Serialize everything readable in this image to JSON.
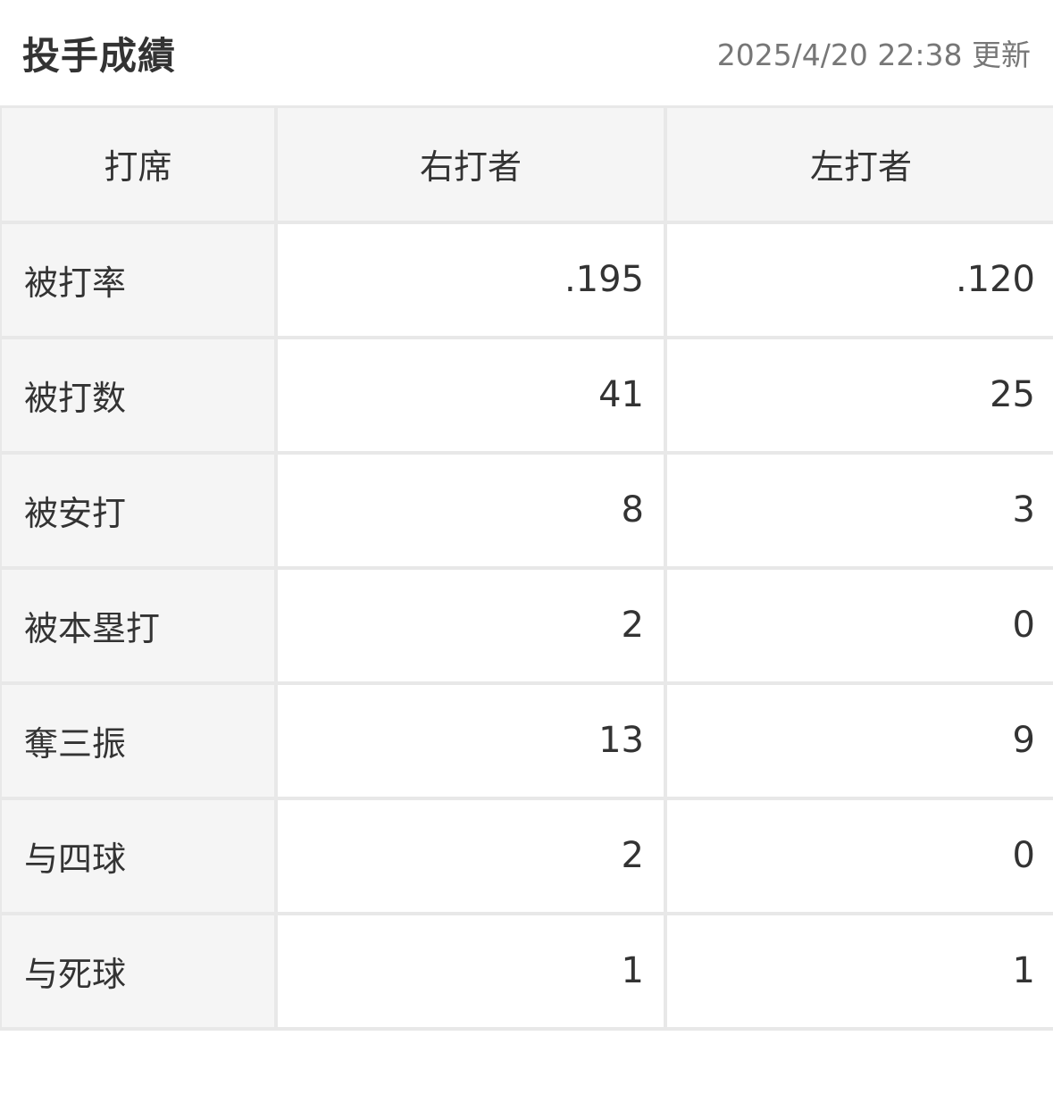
{
  "header": {
    "title": "投手成績",
    "updated": "2025/4/20 22:38 更新"
  },
  "table": {
    "columns": [
      "打席",
      "右打者",
      "左打者"
    ],
    "rows": [
      {
        "label": "被打率",
        "right": ".195",
        "left": ".120"
      },
      {
        "label": "被打数",
        "right": "41",
        "left": "25"
      },
      {
        "label": "被安打",
        "right": "8",
        "left": "3"
      },
      {
        "label": "被本塁打",
        "right": "2",
        "left": "0"
      },
      {
        "label": "奪三振",
        "right": "13",
        "left": "9"
      },
      {
        "label": "与四球",
        "right": "2",
        "left": "0"
      },
      {
        "label": "与死球",
        "right": "1",
        "left": "1"
      }
    ]
  }
}
